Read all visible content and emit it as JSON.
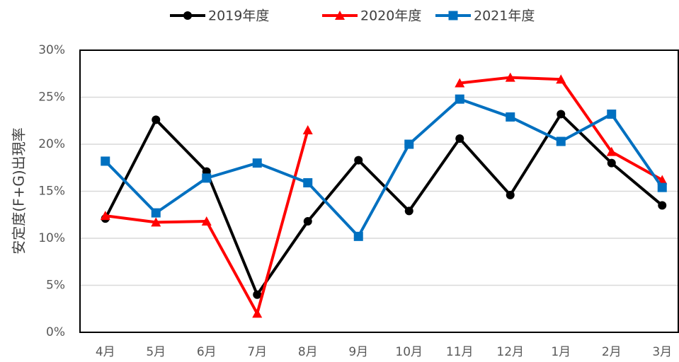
{
  "chart_data": {
    "type": "line",
    "y_label": "安定度(F+G)出現率",
    "categories": [
      "4月",
      "5月",
      "6月",
      "7月",
      "8月",
      "9月",
      "10月",
      "11月",
      "12月",
      "1月",
      "2月",
      "3月"
    ],
    "series": [
      {
        "name": "2019年度",
        "color": "#000000",
        "marker": "circle",
        "values": [
          12.1,
          22.6,
          17.1,
          4.0,
          11.8,
          18.3,
          12.9,
          20.6,
          14.6,
          23.2,
          18.0,
          13.5
        ]
      },
      {
        "name": "2020年度",
        "color": "#ff0000",
        "marker": "triangle",
        "values": [
          12.4,
          11.7,
          11.8,
          2.0,
          21.5,
          null,
          null,
          26.5,
          27.1,
          26.9,
          19.2,
          16.2
        ]
      },
      {
        "name": "2021年度",
        "color": "#0070c0",
        "marker": "square",
        "values": [
          18.2,
          12.7,
          16.4,
          18.0,
          15.9,
          10.2,
          20.0,
          24.8,
          22.9,
          20.3,
          23.2,
          15.4
        ]
      }
    ],
    "ylim": [
      0,
      30
    ],
    "yticks": [
      {
        "value": 0,
        "label": "0%"
      },
      {
        "value": 5,
        "label": "5%"
      },
      {
        "value": 10,
        "label": "10%"
      },
      {
        "value": 15,
        "label": "15%"
      },
      {
        "value": 20,
        "label": "20%"
      },
      {
        "value": 25,
        "label": "25%"
      },
      {
        "value": 30,
        "label": "30%"
      }
    ],
    "grid": true
  }
}
